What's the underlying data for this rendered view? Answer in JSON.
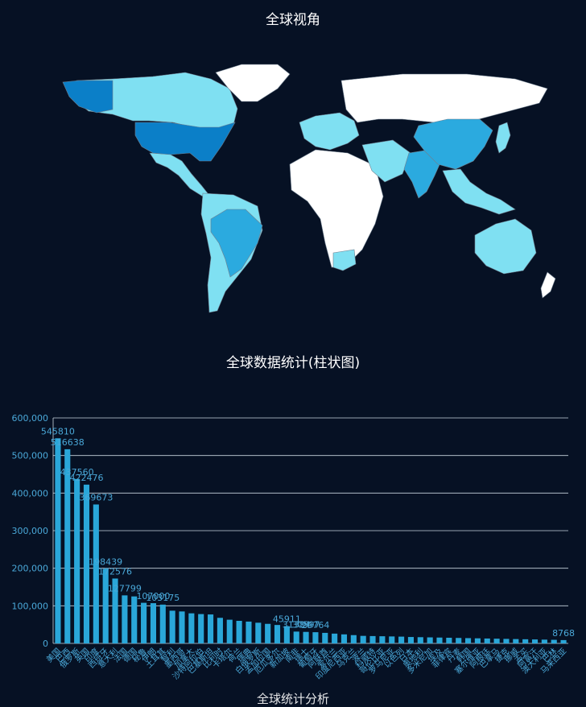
{
  "page": {
    "map_title": "全球视角",
    "bar_title": "全球数据统计(柱状图)",
    "footer_fragment": "全球统计分析"
  },
  "colors": {
    "background": "#061124",
    "map_default": "#ffffff",
    "map_low": "#7fe0f2",
    "map_mid": "#2baadf",
    "map_high": "#0b7fc8",
    "bar": "#2aa7d9",
    "gridline": "#c9d6de",
    "axis_text": "#4aa8d8"
  },
  "map_regions": [
    {
      "name": "North America",
      "color": "#7fe0f2"
    },
    {
      "name": "Alaska",
      "color": "#0b7fc8"
    },
    {
      "name": "United States",
      "color": "#0b7fc8"
    },
    {
      "name": "Greenland",
      "color": "#ffffff"
    },
    {
      "name": "Central America",
      "color": "#7fe0f2"
    },
    {
      "name": "South America",
      "color": "#7fe0f2"
    },
    {
      "name": "Brazil",
      "color": "#2baadf"
    },
    {
      "name": "Europe",
      "color": "#7fe0f2"
    },
    {
      "name": "Russia",
      "color": "#ffffff"
    },
    {
      "name": "Africa",
      "color": "#ffffff"
    },
    {
      "name": "South Africa",
      "color": "#7fe0f2"
    },
    {
      "name": "Middle East",
      "color": "#7fe0f2"
    },
    {
      "name": "India",
      "color": "#2baadf"
    },
    {
      "name": "China",
      "color": "#2baadf"
    },
    {
      "name": "Southeast Asia",
      "color": "#7fe0f2"
    },
    {
      "name": "Japan",
      "color": "#7fe0f2"
    },
    {
      "name": "Australia",
      "color": "#7fe0f2"
    },
    {
      "name": "New Zealand",
      "color": "#ffffff"
    }
  ],
  "chart_data": {
    "type": "bar",
    "title": "全球数据统计(柱状图)",
    "xlabel": "",
    "ylabel": "",
    "ylim": [
      0,
      600000
    ],
    "yticks": [
      "0",
      "100,000",
      "200,000",
      "300,000",
      "400,000",
      "500,000",
      "600,000"
    ],
    "grid": true,
    "categories": [
      "美国",
      "巴西",
      "俄罗斯",
      "英国",
      "印度",
      "西班牙",
      "意大利",
      "法国",
      "德国",
      "秘鲁",
      "伊朗",
      "土耳其",
      "智利",
      "墨西哥",
      "加拿大",
      "沙特阿拉伯",
      "巴基斯坦",
      "比利时",
      "卡塔尔",
      "荷兰",
      "瑞典",
      "白俄罗斯",
      "孟加拉国",
      "厄瓜多尔",
      "新加坡",
      "南非",
      "瑞士",
      "葡萄牙",
      "阿联酋",
      "爱尔兰",
      "印度尼西亚",
      "乌克兰",
      "波兰",
      "科威特",
      "哥伦比亚",
      "罗马尼亚",
      "以色列",
      "日本",
      "奥地利",
      "多米尼加",
      "埃及",
      "菲律宾",
      "丹麦",
      "韩国",
      "塞尔维亚",
      "阿根廷",
      "巴拿马",
      "捷克",
      "挪威",
      "孟买",
      "阿富汗",
      "澳大利亚",
      "巴林",
      "马来西亚"
    ],
    "values": [
      545810,
      516638,
      437560,
      422476,
      369673,
      198439,
      172576,
      127799,
      125000,
      108000,
      107000,
      103175,
      87000,
      85000,
      80000,
      78000,
      77000,
      68000,
      63000,
      60000,
      58000,
      55000,
      52000,
      49000,
      45911,
      31384,
      30597,
      29764,
      28000,
      26000,
      24000,
      22000,
      20000,
      19500,
      19000,
      18500,
      18000,
      17000,
      16500,
      16000,
      15500,
      15000,
      14500,
      14000,
      13500,
      13000,
      12500,
      12000,
      11500,
      11000,
      10500,
      10000,
      9500,
      8768
    ],
    "data_labels": [
      "545810",
      "516638",
      "437560",
      "422476",
      "369673",
      "198439",
      "172576",
      "127799",
      "",
      "",
      "107000",
      "103175",
      "",
      "",
      "",
      "",
      "",
      "",
      "",
      "",
      "",
      "",
      "",
      "",
      "45911",
      "31384",
      "30597",
      "29764",
      "",
      "",
      "",
      "",
      "",
      "",
      "",
      "",
      "",
      "",
      "",
      "",
      "",
      "",
      "",
      "",
      "",
      "",
      "",
      "",
      "",
      "",
      "",
      "",
      "",
      "8768"
    ]
  }
}
